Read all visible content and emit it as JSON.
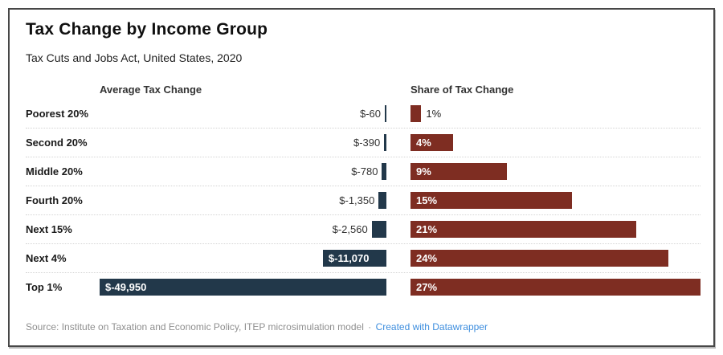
{
  "title": "Tax Change by Income Group",
  "subtitle": "Tax Cuts and Jobs Act, United States, 2020",
  "footer": {
    "source": "Source: Institute on Taxation and Economic Policy, ITEP microsimulation model",
    "separator": "·",
    "link": "Created with Datawrapper"
  },
  "colors": {
    "average_bar": "#22384a",
    "share_bar": "#7e2d22",
    "link": "#3e8ede",
    "source_text": "#8f8f8f"
  },
  "chart_data": {
    "type": "bar",
    "layout": "two horizontal bar panels sharing category rows; left panel right-aligned bars, right panel left-aligned bars",
    "grid": "dotted row separators, no axes shown",
    "categories": [
      "Poorest 20%",
      "Second 20%",
      "Middle 20%",
      "Fourth 20%",
      "Next 15%",
      "Next 4%",
      "Top 1%"
    ],
    "series": [
      {
        "name": "Average Tax Change",
        "values": [
          -60,
          -390,
          -780,
          -1350,
          -2560,
          -11070,
          -49950
        ],
        "labels": [
          "$-60",
          "$-390",
          "$-780",
          "$-1,350",
          "$-2,560",
          "$-11,070",
          "$-49,950"
        ],
        "axis_max_abs": 49950,
        "bar_direction": "right-aligned",
        "color": "#22384a",
        "label_inside": [
          false,
          false,
          false,
          false,
          false,
          true,
          true
        ]
      },
      {
        "name": "Share of Tax Change",
        "values": [
          1,
          4,
          9,
          15,
          21,
          24,
          27
        ],
        "labels": [
          "1%",
          "4%",
          "9%",
          "15%",
          "21%",
          "24%",
          "27%"
        ],
        "axis_max": 27,
        "bar_direction": "left-aligned",
        "color": "#7e2d22",
        "label_inside": [
          false,
          true,
          true,
          true,
          true,
          true,
          true
        ]
      }
    ]
  }
}
